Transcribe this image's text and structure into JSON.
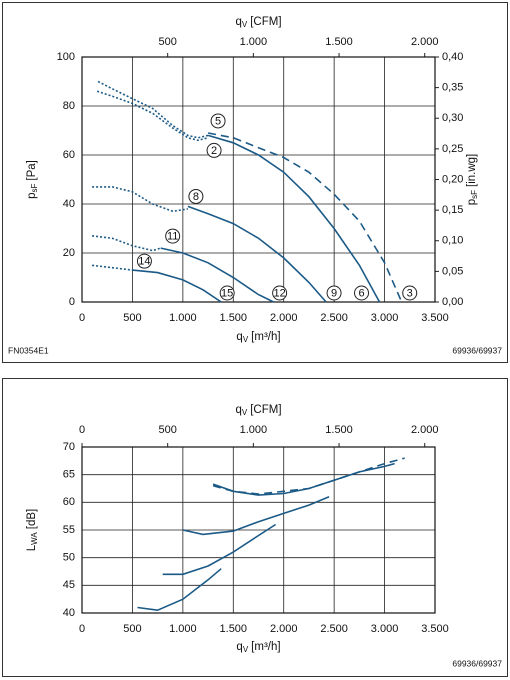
{
  "chart_data": [
    {
      "type": "line",
      "x_label": {
        "symbol": "q",
        "subscript": "V",
        "unit": "[m³/h]"
      },
      "x2_label": {
        "symbol": "q",
        "subscript": "V",
        "unit": "[CFM]"
      },
      "y_label": {
        "symbol": "p",
        "subscript": "sF",
        "unit": "[Pa]"
      },
      "y2_label": {
        "symbol": "p",
        "subscript": "sF",
        "unit": "[in.wg]"
      },
      "xlim": [
        0,
        3500
      ],
      "xticks": [
        0,
        500,
        {
          "value": 1000,
          "label": "1.000"
        },
        {
          "value": 1500,
          "label": "1.500"
        },
        {
          "value": 2000,
          "label": "2.000"
        },
        {
          "value": 2500,
          "label": "2.500"
        },
        {
          "value": 3000,
          "label": "3.000"
        },
        {
          "value": 3500,
          "label": "3.500"
        }
      ],
      "x2lim": [
        0,
        2060
      ],
      "x2ticks": [
        500,
        {
          "value": 1000,
          "label": "1.000"
        },
        {
          "value": 1500,
          "label": "1.500"
        },
        {
          "value": 2000,
          "label": "2.000"
        }
      ],
      "ylim": [
        0,
        100
      ],
      "yticks": [
        0,
        20,
        40,
        60,
        80,
        100
      ],
      "y2lim": [
        0,
        0.4
      ],
      "y2ticks": [
        {
          "value": 0,
          "label": "0,00"
        },
        {
          "value": 0.05,
          "label": "0,05"
        },
        {
          "value": 0.1,
          "label": "0,10"
        },
        {
          "value": 0.15,
          "label": "0,15"
        },
        {
          "value": 0.2,
          "label": "0,20"
        },
        {
          "value": 0.25,
          "label": "0,25"
        },
        {
          "value": 0.3,
          "label": "0,30"
        },
        {
          "value": 0.35,
          "label": "0,35"
        },
        {
          "value": 0.4,
          "label": "0,40"
        }
      ],
      "grid": true,
      "series": [
        {
          "name": "5",
          "end_label": "3",
          "color": "#1b5a87",
          "style": "dashed",
          "x_dotted": [
            160,
            300,
            500,
            700,
            900,
            1050,
            1150,
            1250
          ],
          "values_dotted": [
            90,
            87,
            83,
            79,
            72,
            68,
            67,
            68
          ],
          "x": [
            1250,
            1500,
            1750,
            2000,
            2250,
            2500,
            2750,
            3000,
            3170
          ],
          "values": [
            69,
            67,
            63,
            59,
            53,
            44,
            33,
            16,
            0
          ]
        },
        {
          "name": "2",
          "end_label": "6",
          "color": "#1b5a87",
          "style": "solid",
          "x_dotted": [
            150,
            300,
            500,
            700,
            900,
            1050,
            1150,
            1250
          ],
          "values_dotted": [
            86,
            84,
            81,
            77,
            71,
            67,
            66,
            67
          ],
          "x": [
            1250,
            1500,
            1750,
            2000,
            2250,
            2500,
            2750,
            2950
          ],
          "values": [
            68,
            65,
            60,
            53,
            43,
            30,
            15,
            0
          ]
        },
        {
          "name": "8",
          "end_label": "9",
          "color": "#1b5a87",
          "style": "solid",
          "x_dotted": [
            100,
            300,
            500,
            700,
            900,
            1050
          ],
          "values_dotted": [
            47,
            47,
            45,
            40,
            37,
            38
          ],
          "x": [
            1050,
            1250,
            1500,
            1750,
            2000,
            2250,
            2420
          ],
          "values": [
            39,
            36,
            32,
            26,
            18,
            8,
            0
          ]
        },
        {
          "name": "11",
          "end_label": "12",
          "color": "#1b5a87",
          "style": "solid",
          "x_dotted": [
            100,
            300,
            500,
            700,
            780
          ],
          "values_dotted": [
            27,
            26,
            23,
            21,
            22
          ],
          "x": [
            780,
            1000,
            1250,
            1500,
            1750,
            1900
          ],
          "values": [
            22,
            20,
            16,
            10,
            3,
            0
          ]
        },
        {
          "name": "14",
          "end_label": "15",
          "color": "#1b5a87",
          "style": "solid",
          "x_dotted": [
            100,
            300,
            500
          ],
          "values_dotted": [
            15,
            14,
            13
          ],
          "x": [
            500,
            750,
            1000,
            1200,
            1380
          ],
          "values": [
            13,
            12,
            9,
            5,
            0
          ]
        }
      ],
      "notes": [
        "FN0354E1",
        "69936/69937"
      ]
    },
    {
      "type": "line",
      "x_label": {
        "symbol": "q",
        "subscript": "V",
        "unit": "[m³/h]"
      },
      "x2_label": {
        "symbol": "q",
        "subscript": "V",
        "unit": "[CFM]"
      },
      "y_label": {
        "symbol": "L",
        "subscript": "WA",
        "unit": "[dB]"
      },
      "xlim": [
        0,
        3500
      ],
      "xticks": [
        0,
        500,
        {
          "value": 1000,
          "label": "1.000"
        },
        {
          "value": 1500,
          "label": "1.500"
        },
        {
          "value": 2000,
          "label": "2.000"
        },
        {
          "value": 2500,
          "label": "2.500"
        },
        {
          "value": 3000,
          "label": "3.000"
        },
        {
          "value": 3500,
          "label": "3.500"
        }
      ],
      "x2lim": [
        0,
        2060
      ],
      "x2ticks": [
        0,
        500,
        {
          "value": 1000,
          "label": "1.000"
        },
        {
          "value": 1500,
          "label": "1.500"
        },
        {
          "value": 2000,
          "label": "2.000"
        }
      ],
      "ylim": [
        40,
        70
      ],
      "yticks": [
        40,
        45,
        50,
        55,
        60,
        65,
        70
      ],
      "grid": true,
      "series": [
        {
          "color": "#1b5a87",
          "style": "dashed",
          "x": [
            1300,
            1500,
            1750,
            2000,
            2250,
            2500,
            2750,
            3000,
            3200
          ],
          "values": [
            63,
            62,
            61.5,
            62,
            62.5,
            64,
            65.5,
            67,
            68
          ]
        },
        {
          "color": "#1b5a87",
          "style": "solid",
          "x": [
            1300,
            1500,
            1750,
            2000,
            2250,
            2500,
            2750,
            3000,
            3100
          ],
          "values": [
            63.3,
            62,
            61.3,
            61.6,
            62.5,
            64,
            65.5,
            66.5,
            67
          ]
        },
        {
          "color": "#1b5a87",
          "style": "solid",
          "x": [
            1000,
            1200,
            1500,
            1750,
            2000,
            2250,
            2450
          ],
          "values": [
            55,
            54.2,
            54.8,
            56.5,
            58,
            59.5,
            61
          ]
        },
        {
          "color": "#1b5a87",
          "style": "solid",
          "x": [
            800,
            1000,
            1250,
            1500,
            1750,
            1920
          ],
          "values": [
            47,
            47,
            48.5,
            51,
            54,
            56
          ]
        },
        {
          "color": "#1b5a87",
          "style": "solid",
          "x": [
            550,
            750,
            1000,
            1250,
            1380
          ],
          "values": [
            41,
            40.5,
            42.5,
            46,
            48
          ]
        }
      ],
      "notes": [
        "69936/69937"
      ]
    }
  ]
}
